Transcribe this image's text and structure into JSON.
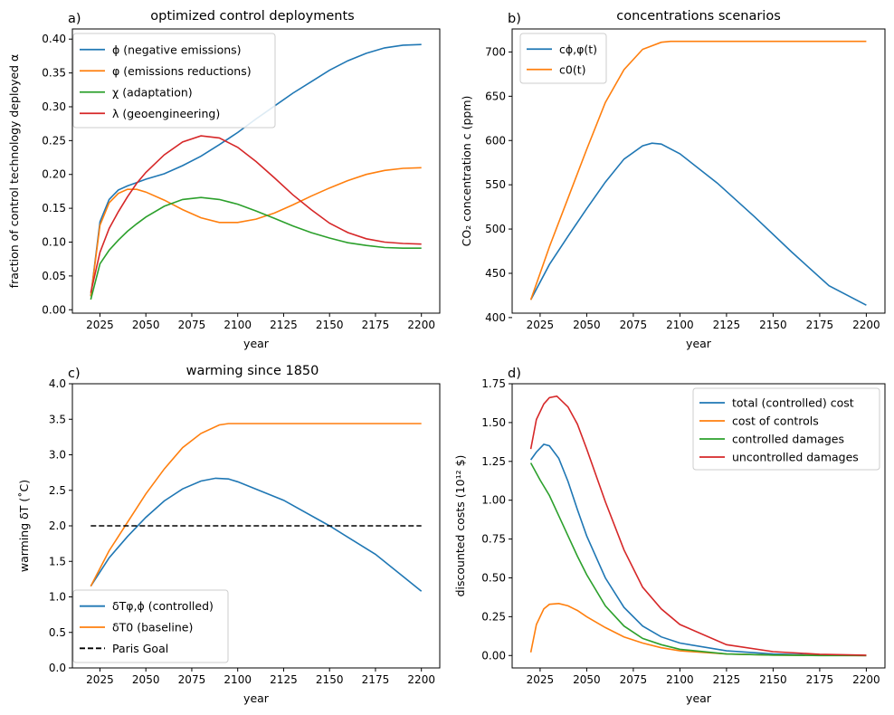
{
  "colors": {
    "c1": "#1f77b4",
    "c2": "#ff7f0e",
    "c3": "#2ca02c",
    "c4": "#d62728",
    "black": "#000000"
  },
  "chart_data": [
    {
      "type": "line",
      "panel_label": "a)",
      "title": "optimized control deployments",
      "xlabel": "year",
      "ylabel": "fraction of control technology deployed α",
      "xlim": [
        2010,
        2210
      ],
      "ylim": [
        -0.005,
        0.415
      ],
      "xticks": [
        2025,
        2050,
        2075,
        2100,
        2125,
        2150,
        2175,
        2200
      ],
      "yticks": [
        0.0,
        0.05,
        0.1,
        0.15,
        0.2,
        0.25,
        0.3,
        0.35,
        0.4
      ],
      "ytick_labels": [
        "0.00",
        "0.05",
        "0.10",
        "0.15",
        "0.20",
        "0.25",
        "0.30",
        "0.35",
        "0.40"
      ],
      "legend": "top-left",
      "series": [
        {
          "name": "ϕ (negative emissions)",
          "color": "#1f77b4",
          "x": [
            2020,
            2025,
            2030,
            2035,
            2040,
            2045,
            2050,
            2060,
            2070,
            2080,
            2090,
            2100,
            2110,
            2120,
            2130,
            2140,
            2150,
            2160,
            2170,
            2180,
            2190,
            2200
          ],
          "y": [
            0.02,
            0.13,
            0.163,
            0.177,
            0.183,
            0.188,
            0.193,
            0.201,
            0.213,
            0.227,
            0.244,
            0.262,
            0.282,
            0.301,
            0.32,
            0.337,
            0.354,
            0.368,
            0.379,
            0.387,
            0.391,
            0.392
          ]
        },
        {
          "name": "φ (emissions reductions)",
          "color": "#ff7f0e",
          "x": [
            2020,
            2025,
            2030,
            2035,
            2040,
            2045,
            2050,
            2060,
            2070,
            2080,
            2090,
            2100,
            2110,
            2120,
            2130,
            2140,
            2150,
            2160,
            2170,
            2180,
            2190,
            2200
          ],
          "y": [
            0.02,
            0.125,
            0.158,
            0.172,
            0.178,
            0.178,
            0.174,
            0.162,
            0.148,
            0.136,
            0.129,
            0.129,
            0.134,
            0.143,
            0.155,
            0.168,
            0.18,
            0.191,
            0.2,
            0.206,
            0.209,
            0.21
          ]
        },
        {
          "name": "χ (adaptation)",
          "color": "#2ca02c",
          "x": [
            2020,
            2025,
            2030,
            2035,
            2040,
            2045,
            2050,
            2060,
            2070,
            2080,
            2090,
            2100,
            2110,
            2120,
            2130,
            2140,
            2150,
            2160,
            2170,
            2180,
            2190,
            2200
          ],
          "y": [
            0.015,
            0.068,
            0.088,
            0.103,
            0.116,
            0.127,
            0.137,
            0.153,
            0.163,
            0.166,
            0.163,
            0.156,
            0.146,
            0.135,
            0.124,
            0.114,
            0.106,
            0.099,
            0.095,
            0.092,
            0.091,
            0.091
          ]
        },
        {
          "name": "λ (geoengineering)",
          "color": "#d62728",
          "x": [
            2020,
            2025,
            2030,
            2035,
            2040,
            2045,
            2050,
            2060,
            2070,
            2080,
            2090,
            2100,
            2110,
            2120,
            2130,
            2140,
            2150,
            2160,
            2170,
            2180,
            2190,
            2200
          ],
          "y": [
            0.025,
            0.085,
            0.12,
            0.145,
            0.167,
            0.187,
            0.203,
            0.229,
            0.248,
            0.257,
            0.254,
            0.24,
            0.219,
            0.195,
            0.17,
            0.148,
            0.128,
            0.114,
            0.105,
            0.1,
            0.098,
            0.097
          ]
        }
      ]
    },
    {
      "type": "line",
      "panel_label": "b)",
      "title": "concentrations scenarios",
      "xlabel": "year",
      "ylabel": "CO₂ concentration c (ppm)",
      "xlim": [
        2010,
        2210
      ],
      "ylim": [
        405,
        726
      ],
      "xticks": [
        2025,
        2050,
        2075,
        2100,
        2125,
        2150,
        2175,
        2200
      ],
      "yticks": [
        400,
        450,
        500,
        550,
        600,
        650,
        700
      ],
      "ytick_labels": [
        "400",
        "450",
        "500",
        "550",
        "600",
        "650",
        "700"
      ],
      "legend": "top-left",
      "series": [
        {
          "name": "cϕ,φ(t)",
          "color": "#1f77b4",
          "x": [
            2020,
            2030,
            2040,
            2050,
            2060,
            2070,
            2080,
            2085,
            2090,
            2100,
            2120,
            2140,
            2160,
            2180,
            2200
          ],
          "y": [
            420,
            460,
            492,
            523,
            553,
            579,
            594,
            597,
            596,
            585,
            552,
            514,
            474,
            436,
            414
          ]
        },
        {
          "name": "c0(t)",
          "color": "#ff7f0e",
          "x": [
            2020,
            2030,
            2040,
            2050,
            2060,
            2070,
            2080,
            2090,
            2095,
            2100,
            2150,
            2200
          ],
          "y": [
            420,
            480,
            535,
            590,
            643,
            680,
            703,
            711,
            712,
            712,
            712,
            712
          ]
        }
      ]
    },
    {
      "type": "line",
      "panel_label": "c)",
      "title": "warming since 1850",
      "xlabel": "year",
      "ylabel": "warming δT (˚C)",
      "xlim": [
        2010,
        2210
      ],
      "ylim": [
        0.0,
        4.0
      ],
      "xticks": [
        2025,
        2050,
        2075,
        2100,
        2125,
        2150,
        2175,
        2200
      ],
      "yticks": [
        0.0,
        0.5,
        1.0,
        1.5,
        2.0,
        2.5,
        3.0,
        3.5,
        4.0
      ],
      "ytick_labels": [
        "0.0",
        "0.5",
        "1.0",
        "1.5",
        "2.0",
        "2.5",
        "3.0",
        "3.5",
        "4.0"
      ],
      "legend": "bottom-left",
      "series": [
        {
          "name": "δTφ,ϕ (controlled)",
          "color": "#1f77b4",
          "x": [
            2020,
            2030,
            2040,
            2050,
            2060,
            2070,
            2080,
            2088,
            2095,
            2100,
            2125,
            2150,
            2175,
            2200
          ],
          "y": [
            1.15,
            1.55,
            1.85,
            2.12,
            2.35,
            2.52,
            2.63,
            2.67,
            2.66,
            2.62,
            2.36,
            2.0,
            1.6,
            1.08
          ]
        },
        {
          "name": "δT0 (baseline)",
          "color": "#ff7f0e",
          "x": [
            2020,
            2030,
            2040,
            2050,
            2060,
            2070,
            2080,
            2090,
            2095,
            2100,
            2150,
            2200
          ],
          "y": [
            1.15,
            1.65,
            2.05,
            2.45,
            2.8,
            3.1,
            3.3,
            3.42,
            3.44,
            3.44,
            3.44,
            3.44
          ]
        },
        {
          "name": "Paris Goal",
          "color": "#000000",
          "dashed": true,
          "x": [
            2020,
            2200
          ],
          "y": [
            2.0,
            2.0
          ]
        }
      ]
    },
    {
      "type": "line",
      "panel_label": "d)",
      "title": "",
      "xlabel": "year",
      "ylabel": "discounted costs (10¹² $)",
      "xlim": [
        2010,
        2210
      ],
      "ylim": [
        -0.08,
        1.75
      ],
      "xticks": [
        2025,
        2050,
        2075,
        2100,
        2125,
        2150,
        2175,
        2200
      ],
      "yticks": [
        0.0,
        0.25,
        0.5,
        0.75,
        1.0,
        1.25,
        1.5,
        1.75
      ],
      "ytick_labels": [
        "0.00",
        "0.25",
        "0.50",
        "0.75",
        "1.00",
        "1.25",
        "1.50",
        "1.75"
      ],
      "legend": "top-right",
      "series": [
        {
          "name": "total (controlled) cost",
          "color": "#1f77b4",
          "x": [
            2020,
            2023,
            2027,
            2030,
            2035,
            2040,
            2045,
            2050,
            2060,
            2070,
            2080,
            2090,
            2100,
            2125,
            2150,
            2175,
            2200
          ],
          "y": [
            1.26,
            1.31,
            1.36,
            1.35,
            1.27,
            1.12,
            0.94,
            0.77,
            0.5,
            0.31,
            0.19,
            0.12,
            0.08,
            0.03,
            0.01,
            0.003,
            0.0
          ]
        },
        {
          "name": "cost of controls",
          "color": "#ff7f0e",
          "x": [
            2020,
            2023,
            2027,
            2030,
            2035,
            2040,
            2045,
            2050,
            2060,
            2070,
            2080,
            2090,
            2100,
            2125,
            2150,
            2175,
            2200
          ],
          "y": [
            0.02,
            0.2,
            0.3,
            0.33,
            0.335,
            0.32,
            0.29,
            0.25,
            0.18,
            0.12,
            0.08,
            0.05,
            0.03,
            0.01,
            0.003,
            0.001,
            0.0
          ]
        },
        {
          "name": "controlled damages",
          "color": "#2ca02c",
          "x": [
            2020,
            2025,
            2030,
            2035,
            2040,
            2045,
            2050,
            2060,
            2070,
            2080,
            2090,
            2100,
            2125,
            2150,
            2175,
            2200
          ],
          "y": [
            1.24,
            1.13,
            1.03,
            0.9,
            0.77,
            0.64,
            0.52,
            0.32,
            0.19,
            0.11,
            0.07,
            0.04,
            0.01,
            0.003,
            0.0,
            0.0
          ]
        },
        {
          "name": "uncontrolled damages",
          "color": "#d62728",
          "x": [
            2020,
            2023,
            2027,
            2030,
            2034,
            2040,
            2045,
            2050,
            2060,
            2070,
            2080,
            2090,
            2100,
            2125,
            2150,
            2175,
            2200
          ],
          "y": [
            1.33,
            1.52,
            1.62,
            1.66,
            1.67,
            1.6,
            1.49,
            1.33,
            0.99,
            0.68,
            0.44,
            0.3,
            0.2,
            0.07,
            0.025,
            0.008,
            0.002
          ]
        }
      ]
    }
  ]
}
